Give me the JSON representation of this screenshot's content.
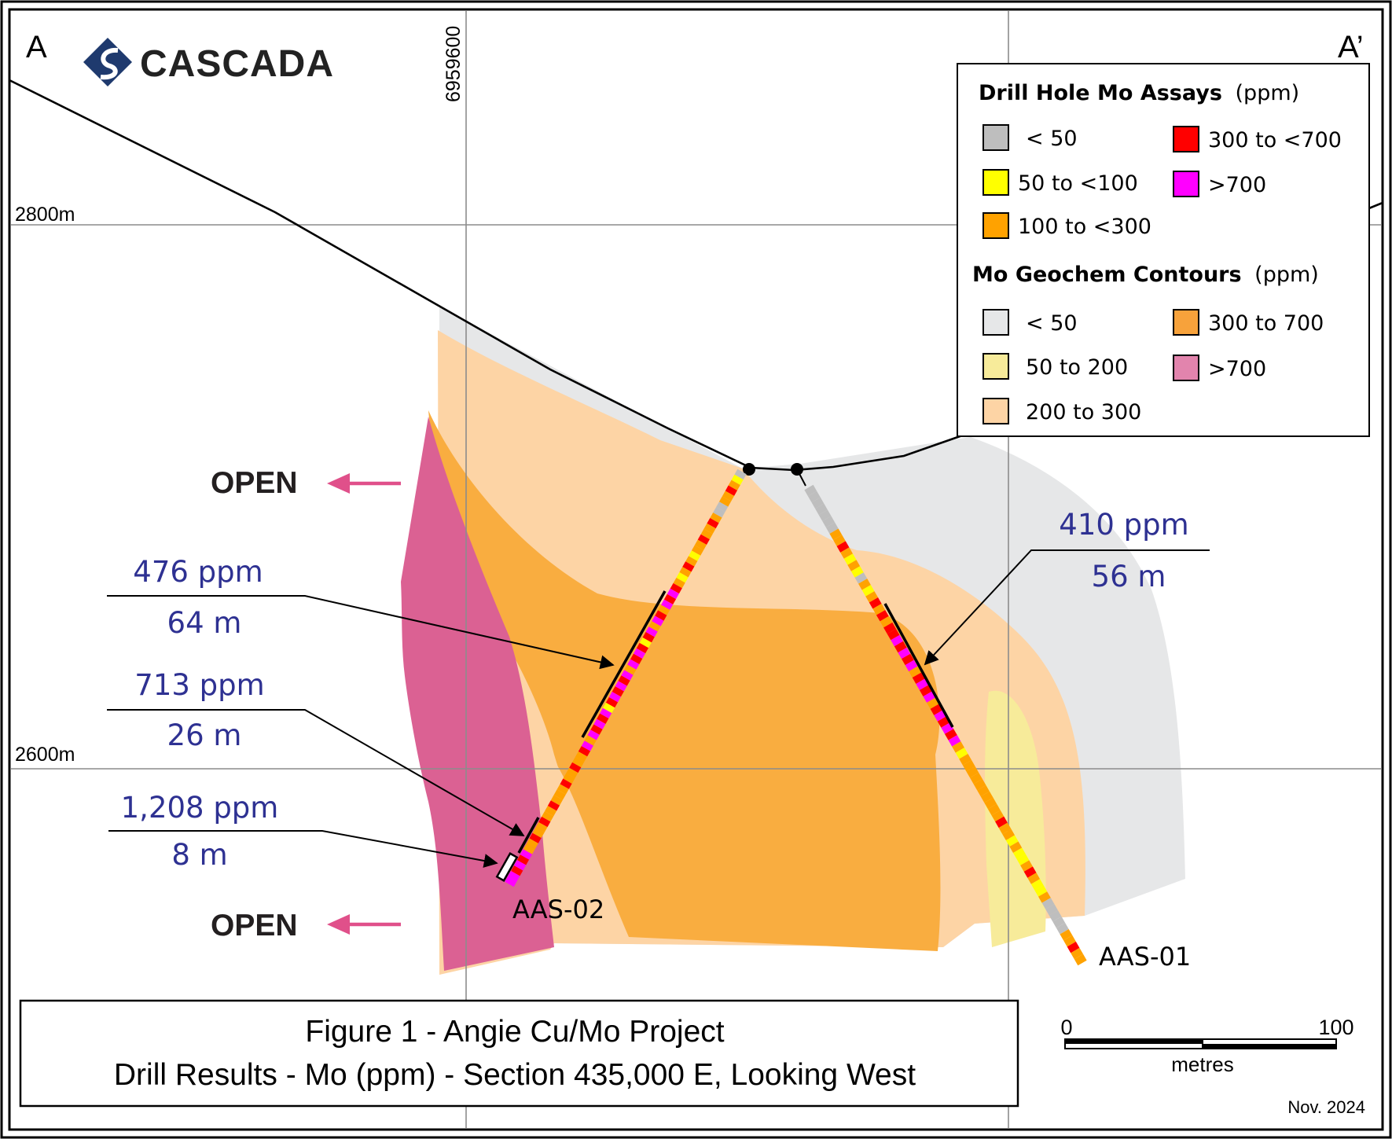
{
  "section": {
    "left_label": "A",
    "right_label": "A’",
    "northing_label": "6959600",
    "elev_upper": "2800m",
    "elev_lower": "2600m"
  },
  "brand": {
    "name": "CASCADA"
  },
  "open_labels": [
    "OPEN",
    "OPEN"
  ],
  "intercepts": [
    {
      "value": "476 ppm",
      "length": "64 m"
    },
    {
      "value": "713 ppm",
      "length": "26 m"
    },
    {
      "value": "1,208 ppm",
      "length": "8 m"
    },
    {
      "value": "410 ppm",
      "length": "56 m"
    }
  ],
  "holes": [
    "AAS-02",
    "AAS-01"
  ],
  "legend": {
    "assays_title": "Drill Hole Mo Assays",
    "assays_unit": "(ppm)",
    "assays": [
      {
        "label": "< 50",
        "color": "#bebebe"
      },
      {
        "label": "300 to <700",
        "color": "#ff0000"
      },
      {
        "label": "50 to <100",
        "color": "#ffff00"
      },
      {
        "label": ">700",
        "color": "#ff00ff"
      },
      {
        "label": "100 to <300",
        "color": "#ffa200"
      }
    ],
    "contours_title": "Mo Geochem Contours",
    "contours_unit": "(ppm)",
    "contours": [
      {
        "label": "< 50",
        "color": "#e6e7e8"
      },
      {
        "label": "300 to 700",
        "color": "#f7a23b"
      },
      {
        "label": "50 to 200",
        "color": "#f7eb9a"
      },
      {
        "label": ">700",
        "color": "#e284ad"
      },
      {
        "label": "200 to 300",
        "color": "#fdd4a5"
      }
    ]
  },
  "scale": {
    "start": "0",
    "end": "100",
    "unit": "metres"
  },
  "title_box": {
    "line1": "Figure 1 - Angie Cu/Mo Project",
    "line2": "Drill Results - Mo (ppm) - Section 435,000 E, Looking West"
  },
  "date": "Nov. 2024",
  "colors": {
    "intercept_text": "#2e3192",
    "open_arrow": "#e0508a",
    "zone_lt50": "#e6e7e8",
    "zone_200_300": "#fdd4a5",
    "zone_300_700": "#f9ad40",
    "zone_gt700": "#db6193",
    "zone_50_200": "#f7eb9a"
  }
}
